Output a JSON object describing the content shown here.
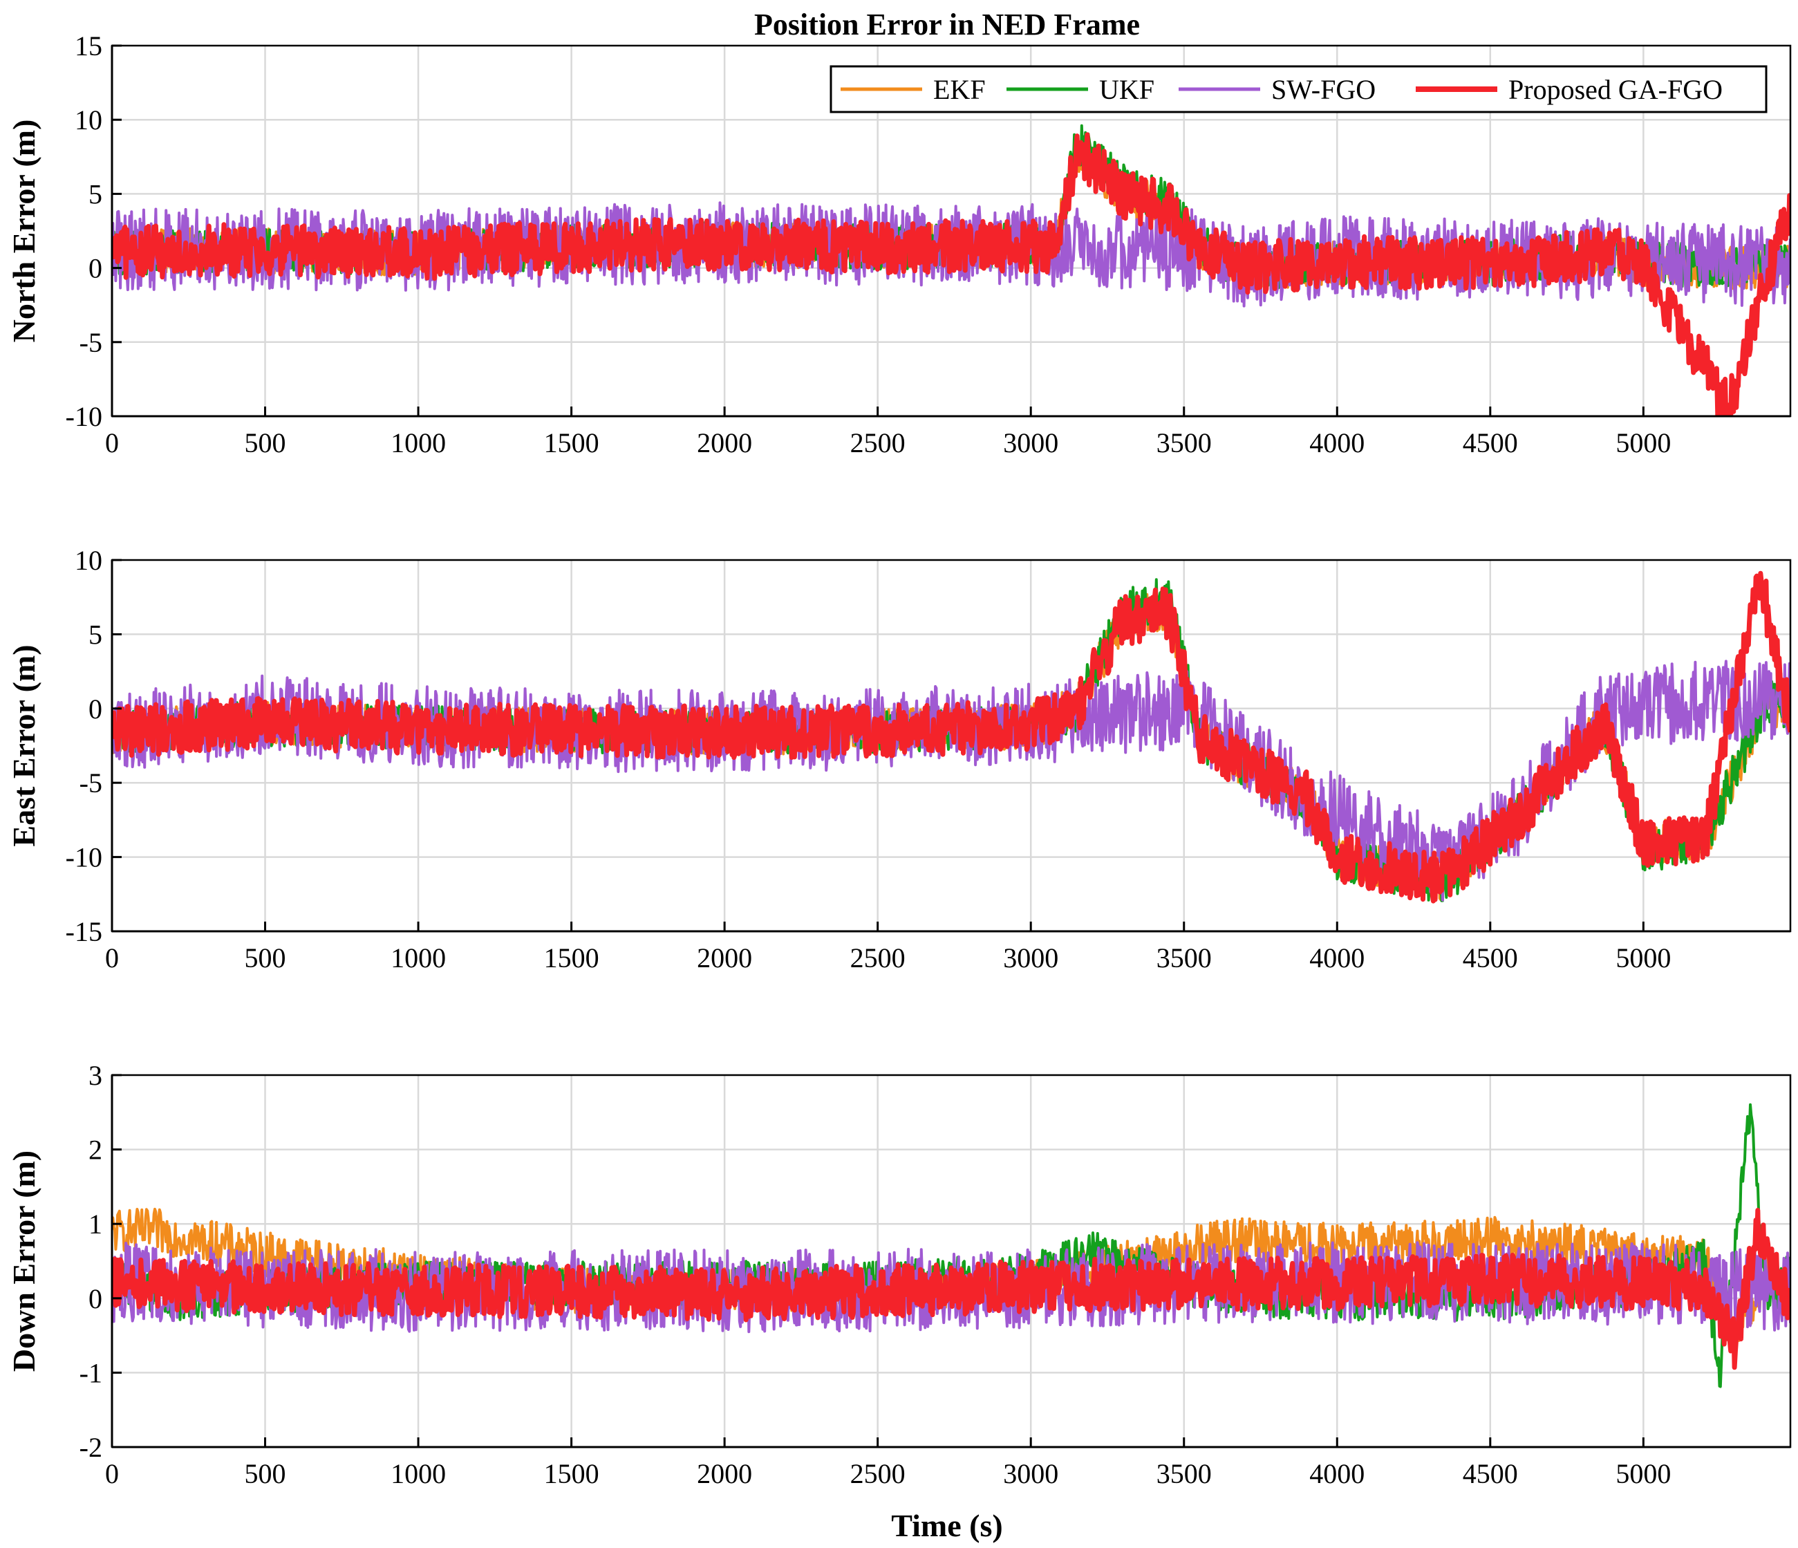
{
  "chart_data": {
    "type": "line",
    "title": "Position Error in NED Frame",
    "legend": {
      "placement": "top-right of first panel",
      "entries": [
        {
          "name": "EKF",
          "color": "#f28c1d"
        },
        {
          "name": "UKF",
          "color": "#14a01e"
        },
        {
          "name": "SW-FGO",
          "color": "#a05ad2"
        },
        {
          "name": "Proposed GA-FGO",
          "color": "#f4232a"
        }
      ]
    },
    "grid": true,
    "xlabel": "Time (s)",
    "xlim": [
      0,
      5480
    ],
    "xticks": [
      0,
      500,
      1000,
      1500,
      2000,
      2500,
      3000,
      3500,
      4000,
      4500,
      5000
    ],
    "panels": [
      {
        "ylabel": "North Error (m)",
        "ylim": [
          -10,
          15
        ],
        "yticks": [
          -10,
          -5,
          0,
          5,
          10,
          15
        ],
        "series": [
          {
            "name": "EKF",
            "x": [
              0,
              300,
              1000,
              1600,
              2000,
              2500,
              3000,
              3080,
              3150,
              3300,
              3450,
              3550,
              3700,
              4000,
              4500,
              4900,
              5000,
              5300,
              5470
            ],
            "y": [
              1.0,
              1.2,
              1.0,
              1.5,
              1.6,
              1.4,
              1.5,
              1.3,
              8.0,
              5.0,
              4.0,
              1.5,
              0.0,
              0.4,
              0.3,
              1.0,
              0.3,
              0.0,
              0.2
            ]
          },
          {
            "name": "UKF",
            "x": [
              0,
              300,
              1000,
              1600,
              2000,
              2500,
              3000,
              3080,
              3150,
              3300,
              3450,
              3550,
              3700,
              4000,
              4500,
              4900,
              5000,
              5300,
              5470
            ],
            "y": [
              1.0,
              1.2,
              1.0,
              1.5,
              1.6,
              1.4,
              1.5,
              1.3,
              8.5,
              5.5,
              4.5,
              1.5,
              0.0,
              0.4,
              0.3,
              1.0,
              0.3,
              0.0,
              0.2
            ]
          },
          {
            "name": "SW-FGO",
            "x": [
              0,
              300,
              1000,
              1600,
              2000,
              2500,
              3000,
              3080,
              3550,
              3700,
              4000,
              4500,
              4900,
              5000,
              5300,
              5470
            ],
            "y": [
              1.2,
              1.3,
              1.2,
              1.6,
              1.7,
              1.5,
              1.6,
              1.4,
              1.2,
              0.0,
              0.8,
              0.5,
              0.6,
              0.3,
              0.2,
              0.3
            ]
          },
          {
            "name": "Proposed GA-FGO",
            "x": [
              0,
              300,
              1000,
              1600,
              2000,
              2500,
              3000,
              3080,
              3150,
              3300,
              3450,
              3550,
              3700,
              4000,
              4500,
              4900,
              5000,
              5280,
              5470
            ],
            "y": [
              1.0,
              1.2,
              1.0,
              1.5,
              1.6,
              1.4,
              1.5,
              1.3,
              8.0,
              5.0,
              4.0,
              1.5,
              0.0,
              0.4,
              0.3,
              1.0,
              0.3,
              -9.5,
              4.0
            ]
          }
        ]
      },
      {
        "ylabel": "East Error (m)",
        "ylim": [
          -15,
          10
        ],
        "yticks": [
          -15,
          -10,
          -5,
          0,
          5
        ],
        "top_tick": 10,
        "series": [
          {
            "name": "EKF",
            "x": [
              0,
              500,
              1000,
              1600,
              2000,
              2500,
              3000,
              3150,
              3300,
              3450,
              3550,
              3900,
              4000,
              4350,
              4600,
              4870,
              5000,
              5200,
              5400,
              5470
            ],
            "y": [
              -1.5,
              -1.0,
              -1.3,
              -1.5,
              -1.6,
              -1.5,
              -1.2,
              0.0,
              6.0,
              6.5,
              -2.0,
              -6.0,
              -10.0,
              -11.5,
              -7.0,
              -1.0,
              -9.0,
              -9.0,
              0.5,
              0.0
            ]
          },
          {
            "name": "UKF",
            "x": [
              0,
              500,
              1000,
              1600,
              2000,
              2500,
              3000,
              3150,
              3300,
              3450,
              3550,
              3900,
              4000,
              4350,
              4600,
              4870,
              5000,
              5200,
              5400,
              5470
            ],
            "y": [
              -1.5,
              -1.0,
              -1.3,
              -1.5,
              -1.6,
              -1.5,
              -1.2,
              0.0,
              6.5,
              7.5,
              -2.0,
              -6.0,
              -10.0,
              -11.8,
              -7.0,
              -1.0,
              -9.5,
              -9.0,
              0.5,
              0.0
            ]
          },
          {
            "name": "SW-FGO",
            "x": [
              0,
              500,
              1000,
              1600,
              2000,
              2500,
              3000,
              3500,
              3900,
              4350,
              4600,
              4870,
              5200,
              5470
            ],
            "y": [
              -1.5,
              -0.5,
              -1.2,
              -1.5,
              -1.5,
              -1.4,
              -1.0,
              0.0,
              -6.0,
              -10.5,
              -7.0,
              0.0,
              0.5,
              0.5
            ]
          },
          {
            "name": "Proposed GA-FGO",
            "x": [
              0,
              500,
              1000,
              1600,
              2000,
              2500,
              3000,
              3150,
              3300,
              3450,
              3550,
              3900,
              4000,
              4350,
              4600,
              4870,
              5000,
              5200,
              5380,
              5470
            ],
            "y": [
              -1.5,
              -1.0,
              -1.3,
              -1.5,
              -1.6,
              -1.5,
              -1.2,
              0.0,
              6.0,
              6.5,
              -2.0,
              -6.0,
              -10.0,
              -11.5,
              -7.0,
              -1.0,
              -9.0,
              -9.0,
              9.0,
              0.0
            ]
          }
        ]
      },
      {
        "ylabel": "Down Error (m)",
        "ylim": [
          -2,
          3
        ],
        "yticks": [
          -2,
          -1,
          0,
          1,
          2,
          3
        ],
        "series": [
          {
            "name": "EKF",
            "x": [
              0,
              150,
              500,
              1000,
              1500,
              2000,
              2500,
              3000,
              3200,
              3500,
              3600,
              4000,
              4500,
              5000,
              5200,
              5300,
              5400,
              5470
            ],
            "y": [
              0.9,
              0.9,
              0.6,
              0.3,
              0.1,
              0.1,
              0.1,
              0.2,
              0.4,
              0.6,
              0.8,
              0.7,
              0.8,
              0.6,
              0.5,
              -0.5,
              0.3,
              0.1
            ]
          },
          {
            "name": "UKF",
            "x": [
              0,
              200,
              500,
              1000,
              1500,
              2000,
              2500,
              3000,
              3200,
              3500,
              3800,
              4500,
              5000,
              5200,
              5250,
              5350,
              5400,
              5470
            ],
            "y": [
              0.3,
              0.0,
              0.1,
              0.2,
              0.2,
              0.2,
              0.2,
              0.3,
              0.6,
              0.2,
              0.0,
              0.0,
              0.2,
              0.5,
              -1.0,
              2.5,
              0.0,
              0.3
            ]
          },
          {
            "name": "SW-FGO",
            "x": [
              0,
              500,
              1000,
              1500,
              2000,
              2500,
              3000,
              3500,
              4000,
              4500,
              5000,
              5470
            ],
            "y": [
              0.2,
              0.15,
              0.1,
              0.1,
              0.1,
              0.1,
              0.15,
              0.2,
              0.2,
              0.2,
              0.2,
              0.1
            ]
          },
          {
            "name": "Proposed GA-FGO",
            "x": [
              0,
              500,
              1000,
              1500,
              2000,
              2500,
              3000,
              3400,
              3500,
              4000,
              4500,
              5000,
              5200,
              5300,
              5370,
              5470
            ],
            "y": [
              0.2,
              0.15,
              0.1,
              0.1,
              0.05,
              0.1,
              0.15,
              0.2,
              0.2,
              0.2,
              0.25,
              0.2,
              0.15,
              -0.6,
              0.9,
              0.0
            ]
          }
        ]
      }
    ]
  }
}
